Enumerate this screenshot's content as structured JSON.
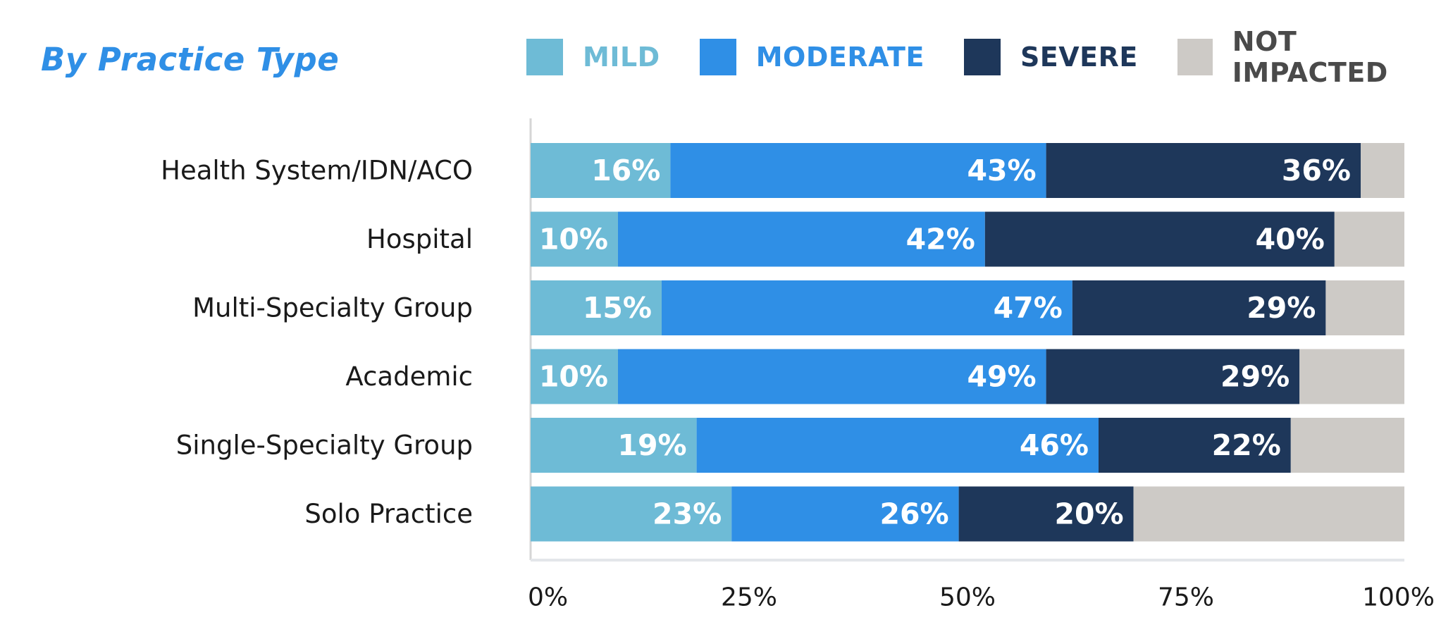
{
  "chart_data": {
    "type": "bar",
    "orientation": "horizontal",
    "stacked": true,
    "title": "By Practice Type",
    "categories": [
      "Health System/IDN/ACO",
      "Hospital",
      "Multi-Specialty Group",
      "Academic",
      "Single-Specialty Group",
      "Solo Practice"
    ],
    "series": [
      {
        "name": "MILD",
        "color": "#6ebbd6",
        "values": [
          16,
          10,
          15,
          10,
          19,
          23
        ]
      },
      {
        "name": "MODERATE",
        "color": "#2f8fe6",
        "values": [
          43,
          42,
          47,
          49,
          46,
          26
        ]
      },
      {
        "name": "SEVERE",
        "color": "#1e375a",
        "values": [
          36,
          40,
          29,
          29,
          22,
          20
        ]
      },
      {
        "name": "NOT IMPACTED",
        "color": "#cdcac6",
        "values": [
          5,
          8,
          9,
          12,
          13,
          31
        ]
      }
    ],
    "data_labels": {
      "MILD": [
        "16%",
        "10%",
        "15%",
        "10%",
        "19%",
        "23%"
      ],
      "MODERATE": [
        "43%",
        "42%",
        "47%",
        "49%",
        "46%",
        "26%"
      ],
      "SEVERE": [
        "36%",
        "40%",
        "29%",
        "29%",
        "22%",
        "20%"
      ]
    },
    "xlim": [
      0,
      100
    ],
    "x_ticks": [
      "0%",
      "25%",
      "50%",
      "75%",
      "100%"
    ],
    "legend_position": "top",
    "grid": false
  }
}
